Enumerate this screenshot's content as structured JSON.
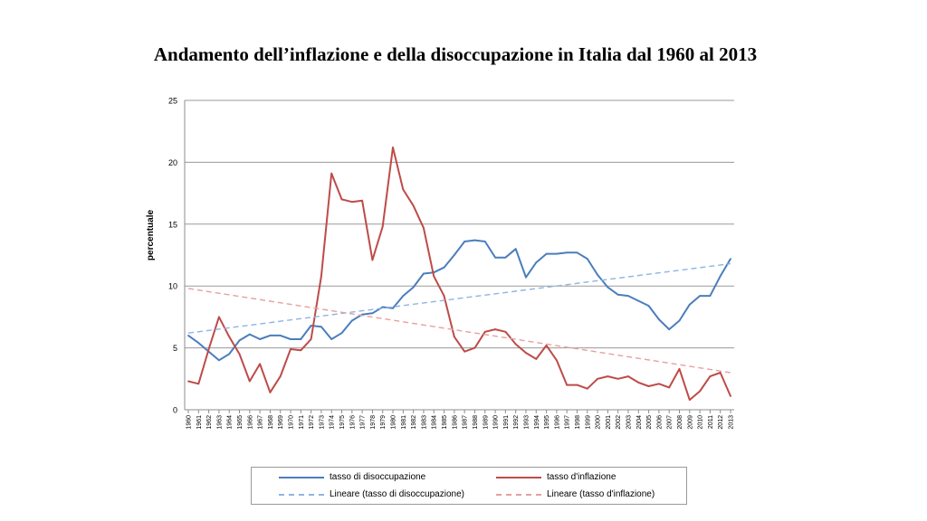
{
  "title": "Andamento dell’inflazione e della disoccupazione in Italia dal 1960 al 2013",
  "chart_data": {
    "type": "line",
    "ylabel": "percentuale",
    "xlabel": "",
    "ylim": [
      0,
      25
    ],
    "yticks": [
      0,
      5,
      10,
      15,
      20,
      25
    ],
    "grid": true,
    "categories": [
      "1960",
      "1961",
      "1962",
      "1963",
      "1964",
      "1965",
      "1966",
      "1967",
      "1968",
      "1969",
      "1970",
      "1971",
      "1972",
      "1973",
      "1974",
      "1975",
      "1976",
      "1977",
      "1978",
      "1979",
      "1980",
      "1981",
      "1982",
      "1983",
      "1984",
      "1985",
      "1986",
      "1987",
      "1988",
      "1989",
      "1990",
      "1991",
      "1992",
      "1993",
      "1994",
      "1995",
      "1996",
      "1997",
      "1998",
      "1999",
      "2000",
      "2001",
      "2002",
      "2003",
      "2004",
      "2005",
      "2006",
      "2007",
      "2008",
      "2009",
      "2010",
      "2011",
      "2012",
      "2013"
    ],
    "series": [
      {
        "name": "tasso di disoccupazione",
        "color": "#4a7ebb",
        "style": "solid",
        "values": [
          6.0,
          5.4,
          4.7,
          4.0,
          4.5,
          5.6,
          6.1,
          5.7,
          6.0,
          6.0,
          5.7,
          5.7,
          6.8,
          6.7,
          5.7,
          6.2,
          7.2,
          7.7,
          7.8,
          8.3,
          8.2,
          9.2,
          9.9,
          11.0,
          11.1,
          11.5,
          12.5,
          13.6,
          13.7,
          13.6,
          12.3,
          12.3,
          13.0,
          10.7,
          11.9,
          12.6,
          12.6,
          12.7,
          12.7,
          12.2,
          10.9,
          9.9,
          9.3,
          9.2,
          8.8,
          8.4,
          7.3,
          6.5,
          7.2,
          8.5,
          9.2,
          9.2,
          10.8,
          12.2
        ]
      },
      {
        "name": "tasso d'inflazione",
        "color": "#be4b48",
        "style": "solid",
        "values": [
          2.3,
          2.1,
          4.9,
          7.5,
          5.9,
          4.5,
          2.3,
          3.7,
          1.4,
          2.7,
          4.9,
          4.8,
          5.7,
          10.8,
          19.1,
          17.0,
          16.8,
          16.9,
          12.1,
          14.8,
          21.2,
          17.8,
          16.5,
          14.7,
          10.8,
          9.2,
          5.9,
          4.7,
          5.0,
          6.3,
          6.5,
          6.3,
          5.3,
          4.6,
          4.1,
          5.2,
          4.0,
          2.0,
          2.0,
          1.7,
          2.5,
          2.7,
          2.5,
          2.7,
          2.2,
          1.9,
          2.1,
          1.8,
          3.3,
          0.8,
          1.5,
          2.7,
          3.0,
          1.1
        ]
      },
      {
        "name": "Lineare (tasso di disoccupazione)",
        "color": "#8eb4e3",
        "style": "dashed",
        "trend": [
          6.2,
          11.8
        ]
      },
      {
        "name": "Lineare (tasso d'inflazione)",
        "color": "#e6a09e",
        "style": "dashed",
        "trend": [
          9.8,
          3.0
        ]
      }
    ]
  },
  "legend": {
    "items": [
      {
        "label": "tasso di disoccupazione",
        "color": "#4a7ebb",
        "style": "solid"
      },
      {
        "label": "tasso d'inflazione",
        "color": "#be4b48",
        "style": "solid"
      },
      {
        "label": "Lineare (tasso di disoccupazione)",
        "color": "#8eb4e3",
        "style": "dashed"
      },
      {
        "label": "Lineare (tasso d'inflazione)",
        "color": "#e6a09e",
        "style": "dashed"
      }
    ]
  }
}
